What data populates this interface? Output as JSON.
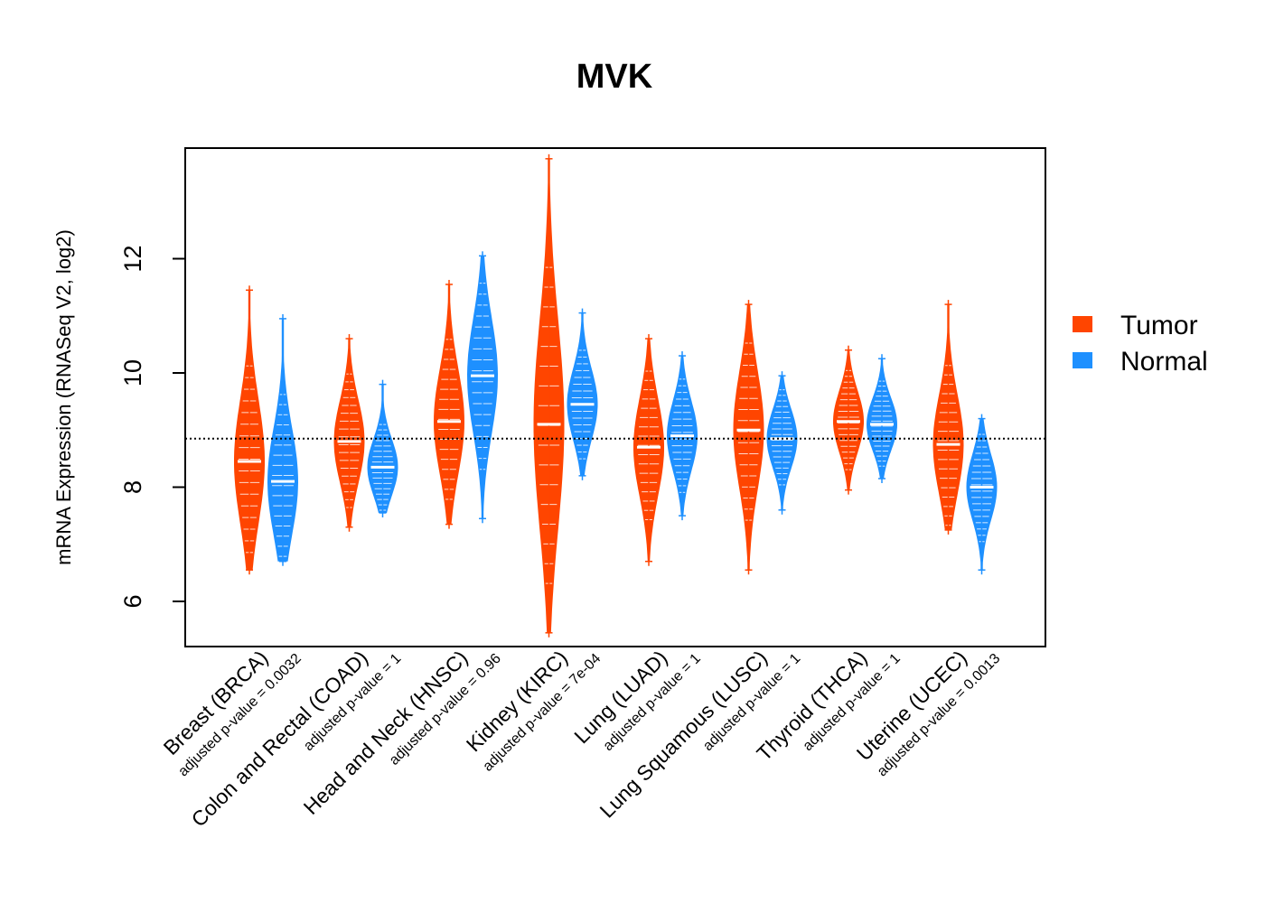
{
  "chart_data": {
    "type": "violin",
    "title": "MVK",
    "ylabel": "mRNA Expression (RNASeq V2, log2)",
    "xlabel": "",
    "ylim": [
      5.2,
      13.9
    ],
    "yticks": [
      6,
      8,
      10,
      12
    ],
    "reference_line": 8.85,
    "legend": {
      "position": "right",
      "entries": [
        {
          "name": "Tumor",
          "color": "#FF4500"
        },
        {
          "name": "Normal",
          "color": "#1E90FF"
        }
      ]
    },
    "categories": [
      {
        "label": "Breast (BRCA)",
        "pvalue": "adjusted p-value = 0.0032",
        "tumor": {
          "median": 8.45,
          "min": 6.55,
          "max": 11.45
        },
        "normal": {
          "median": 8.1,
          "min": 6.7,
          "max": 10.95
        }
      },
      {
        "label": "Colon and Rectal (COAD)",
        "pvalue": "adjusted p-value = 1",
        "tumor": {
          "median": 8.8,
          "min": 7.3,
          "max": 10.6
        },
        "normal": {
          "median": 8.35,
          "min": 7.55,
          "max": 9.8
        }
      },
      {
        "label": "Head and Neck (HNSC)",
        "pvalue": "adjusted p-value = 0.96",
        "tumor": {
          "median": 9.15,
          "min": 7.35,
          "max": 11.55
        },
        "normal": {
          "median": 9.95,
          "min": 7.45,
          "max": 12.05
        }
      },
      {
        "label": "Kidney (KIRC)",
        "pvalue": "adjusted p-value = 7e-04",
        "tumor": {
          "median": 9.1,
          "min": 5.45,
          "max": 13.75
        },
        "normal": {
          "median": 9.45,
          "min": 8.2,
          "max": 11.05
        }
      },
      {
        "label": "Lung (LUAD)",
        "pvalue": "adjusted p-value = 1",
        "tumor": {
          "median": 8.7,
          "min": 6.7,
          "max": 10.6
        },
        "normal": {
          "median": 8.9,
          "min": 7.5,
          "max": 10.3
        }
      },
      {
        "label": "Lung Squamous (LUSC)",
        "pvalue": "adjusted p-value = 1",
        "tumor": {
          "median": 9.0,
          "min": 6.55,
          "max": 11.2
        },
        "normal": {
          "median": 8.85,
          "min": 7.6,
          "max": 9.95
        }
      },
      {
        "label": "Thyroid (THCA)",
        "pvalue": "adjusted p-value = 1",
        "tumor": {
          "median": 9.15,
          "min": 7.95,
          "max": 10.4
        },
        "normal": {
          "median": 9.1,
          "min": 8.15,
          "max": 10.25
        }
      },
      {
        "label": "Uterine (UCEC)",
        "pvalue": "adjusted p-value = 0.0013",
        "tumor": {
          "median": 8.75,
          "min": 7.25,
          "max": 11.2
        },
        "normal": {
          "median": 8.0,
          "min": 6.55,
          "max": 9.2
        }
      }
    ]
  }
}
